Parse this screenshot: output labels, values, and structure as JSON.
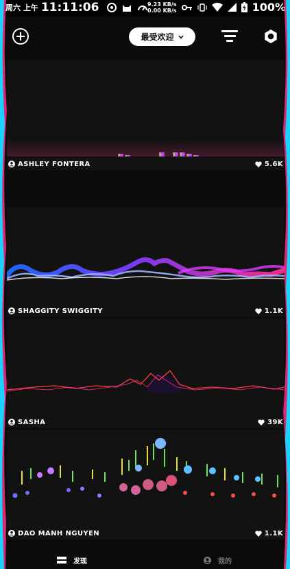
{
  "status_bar": {
    "date": "周六 上午",
    "time": "11:11:06",
    "net_up": "9.23 KB/s",
    "net_down": "0.00 KB/s",
    "battery": "100%"
  },
  "toolbar": {
    "sort_label": "最受欢迎"
  },
  "cards": [
    {
      "author": "ASHLEY FONTERA",
      "likes": "5.6K"
    },
    {
      "author": "SHAGGITY SWIGGITY",
      "likes": "1.1K"
    },
    {
      "author": "SASHA",
      "likes": "39K"
    },
    {
      "author": "DAO MANH NGUYEN",
      "likes": "1.1K"
    }
  ],
  "bottom_nav": {
    "discover": "发现",
    "mine": "我的"
  },
  "colors": {
    "accent_pink": "#ff2d8a",
    "accent_cyan": "#19d3ff",
    "accent_purple": "#7b3cff",
    "card_bg": "#121212"
  }
}
